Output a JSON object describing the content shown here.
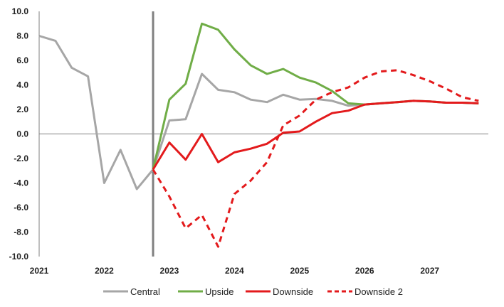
{
  "chart_data": {
    "type": "line",
    "title": "",
    "xlabel": "",
    "ylabel": "",
    "ylim": [
      -10,
      10
    ],
    "ytick_step": 2,
    "yticks": [
      "10.0",
      "8.0",
      "6.0",
      "4.0",
      "2.0",
      "0.0",
      "-2.0",
      "-4.0",
      "-6.0",
      "-8.0",
      "-10.0"
    ],
    "xlim": [
      2021,
      2027.9
    ],
    "xticks": [
      "2021",
      "2022",
      "2023",
      "2024",
      "2025",
      "2026",
      "2027"
    ],
    "vline_x": 2022.75,
    "legend_position": "bottom",
    "series": [
      {
        "name": "Central",
        "color": "#a6a6a6",
        "dash": "solid",
        "points": [
          [
            2021.0,
            8.0
          ],
          [
            2021.25,
            7.6
          ],
          [
            2021.5,
            5.4
          ],
          [
            2021.75,
            4.7
          ],
          [
            2022.0,
            -4.0
          ],
          [
            2022.25,
            -1.3
          ],
          [
            2022.5,
            -4.5
          ],
          [
            2022.75,
            -2.9
          ],
          [
            2023.0,
            1.1
          ],
          [
            2023.25,
            1.2
          ],
          [
            2023.5,
            4.9
          ],
          [
            2023.75,
            3.6
          ],
          [
            2024.0,
            3.4
          ],
          [
            2024.25,
            2.8
          ],
          [
            2024.5,
            2.6
          ],
          [
            2024.75,
            3.2
          ],
          [
            2025.0,
            2.8
          ],
          [
            2025.25,
            2.85
          ],
          [
            2025.5,
            2.7
          ],
          [
            2025.75,
            2.3
          ],
          [
            2026.0,
            2.4
          ],
          [
            2026.25,
            2.5
          ],
          [
            2026.5,
            2.6
          ],
          [
            2026.75,
            2.7
          ],
          [
            2027.0,
            2.65
          ],
          [
            2027.25,
            2.55
          ],
          [
            2027.5,
            2.55
          ],
          [
            2027.75,
            2.5
          ]
        ]
      },
      {
        "name": "Upside",
        "color": "#70ad47",
        "dash": "solid",
        "points": [
          [
            2022.75,
            -2.9
          ],
          [
            2023.0,
            2.8
          ],
          [
            2023.25,
            4.1
          ],
          [
            2023.5,
            9.0
          ],
          [
            2023.75,
            8.5
          ],
          [
            2024.0,
            6.9
          ],
          [
            2024.25,
            5.6
          ],
          [
            2024.5,
            4.9
          ],
          [
            2024.75,
            5.3
          ],
          [
            2025.0,
            4.6
          ],
          [
            2025.25,
            4.2
          ],
          [
            2025.5,
            3.5
          ],
          [
            2025.75,
            2.5
          ],
          [
            2026.0,
            2.4
          ],
          [
            2026.25,
            2.5
          ],
          [
            2026.5,
            2.6
          ],
          [
            2026.75,
            2.7
          ],
          [
            2027.0,
            2.65
          ],
          [
            2027.25,
            2.55
          ],
          [
            2027.5,
            2.55
          ],
          [
            2027.75,
            2.5
          ]
        ]
      },
      {
        "name": "Downside",
        "color": "#e31a1c",
        "dash": "solid",
        "points": [
          [
            2022.75,
            -2.9
          ],
          [
            2023.0,
            -0.7
          ],
          [
            2023.25,
            -2.1
          ],
          [
            2023.5,
            0.0
          ],
          [
            2023.75,
            -2.3
          ],
          [
            2024.0,
            -1.5
          ],
          [
            2024.25,
            -1.2
          ],
          [
            2024.5,
            -0.8
          ],
          [
            2024.75,
            0.1
          ],
          [
            2025.0,
            0.2
          ],
          [
            2025.25,
            1.0
          ],
          [
            2025.5,
            1.7
          ],
          [
            2025.75,
            1.9
          ],
          [
            2026.0,
            2.4
          ],
          [
            2026.25,
            2.5
          ],
          [
            2026.5,
            2.6
          ],
          [
            2026.75,
            2.7
          ],
          [
            2027.0,
            2.65
          ],
          [
            2027.25,
            2.55
          ],
          [
            2027.5,
            2.55
          ],
          [
            2027.75,
            2.5
          ]
        ]
      },
      {
        "name": "Downside 2",
        "color": "#e31a1c",
        "dash": "dashed",
        "points": [
          [
            2022.75,
            -2.9
          ],
          [
            2023.0,
            -5.1
          ],
          [
            2023.25,
            -7.7
          ],
          [
            2023.5,
            -6.6
          ],
          [
            2023.75,
            -9.2
          ],
          [
            2024.0,
            -4.9
          ],
          [
            2024.25,
            -3.8
          ],
          [
            2024.5,
            -2.3
          ],
          [
            2024.75,
            0.7
          ],
          [
            2025.0,
            1.5
          ],
          [
            2025.25,
            2.8
          ],
          [
            2025.5,
            3.4
          ],
          [
            2025.75,
            3.8
          ],
          [
            2026.0,
            4.6
          ],
          [
            2026.25,
            5.1
          ],
          [
            2026.5,
            5.2
          ],
          [
            2026.75,
            4.8
          ],
          [
            2027.0,
            4.3
          ],
          [
            2027.25,
            3.7
          ],
          [
            2027.5,
            3.0
          ],
          [
            2027.75,
            2.7
          ]
        ]
      }
    ]
  }
}
